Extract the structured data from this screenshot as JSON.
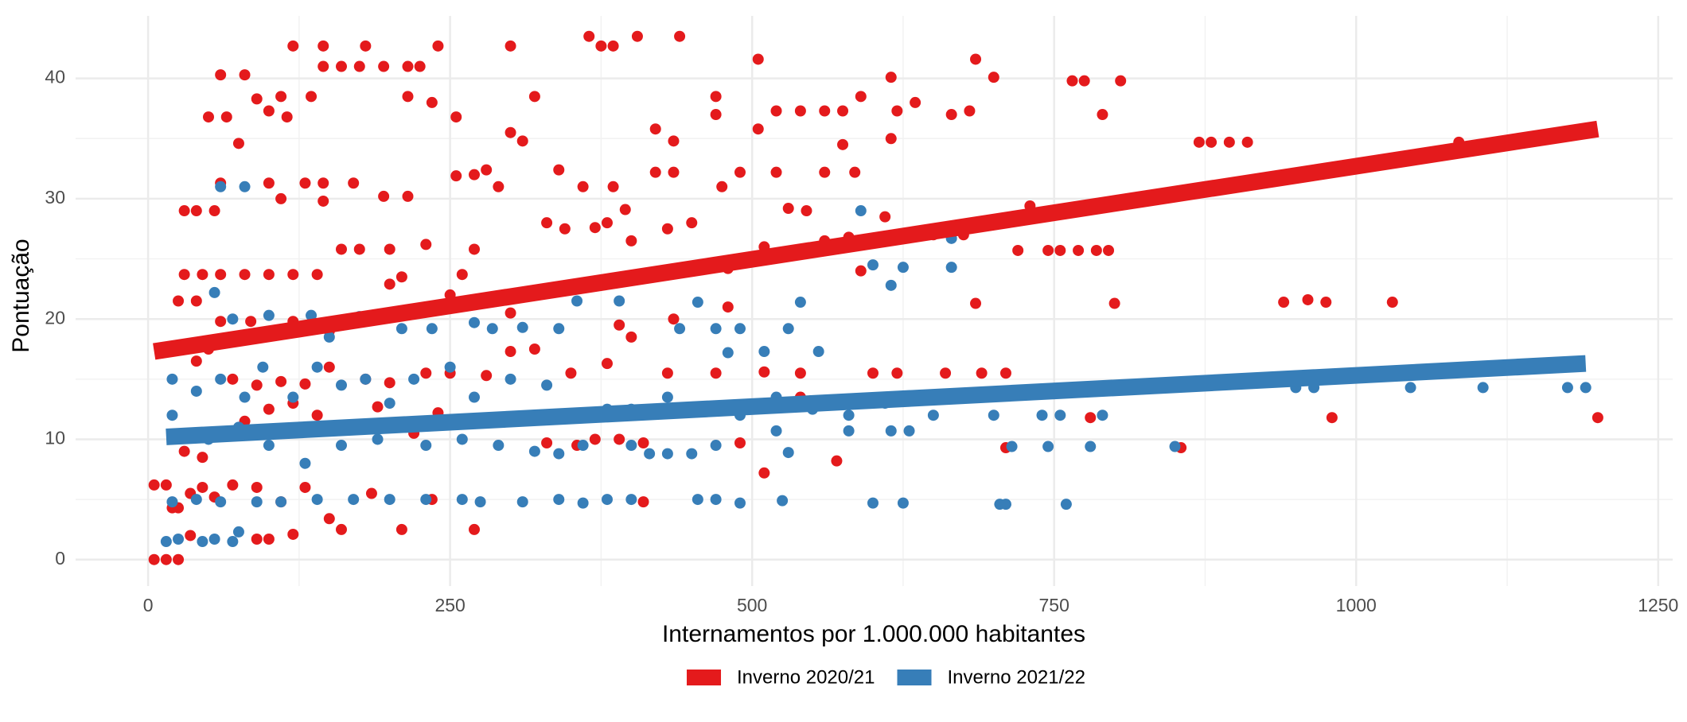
{
  "chart_data": {
    "type": "scatter",
    "xlabel": "Internamentos por 1.000.000 habitantes",
    "ylabel": "Pontuação",
    "xlim": [
      -60,
      1262
    ],
    "ylim": [
      -2.2,
      45.2
    ],
    "xticks": [
      0,
      250,
      500,
      750,
      1000,
      1250
    ],
    "yticks": [
      0,
      10,
      20,
      30,
      40
    ],
    "grid": true,
    "legend": "bottom",
    "series": [
      {
        "name": "Inverno 2020/21",
        "color": "#e41a1c",
        "x": [
          120,
          145,
          180,
          240,
          300,
          365,
          375,
          385,
          405,
          440,
          145,
          160,
          175,
          195,
          215,
          225,
          505,
          685,
          60,
          80,
          615,
          700,
          765,
          775,
          805,
          90,
          110,
          135,
          215,
          235,
          320,
          470,
          590,
          635,
          50,
          65,
          100,
          115,
          255,
          470,
          520,
          540,
          560,
          575,
          620,
          665,
          680,
          790,
          300,
          310,
          420,
          505,
          575,
          615,
          435,
          75,
          870,
          880,
          895,
          910,
          1085,
          60,
          100,
          130,
          145,
          170,
          255,
          270,
          280,
          340,
          360,
          385,
          420,
          435,
          475,
          490,
          520,
          560,
          585,
          30,
          40,
          55,
          110,
          145,
          195,
          215,
          290,
          730,
          545,
          530,
          395,
          60,
          80,
          100,
          120,
          140,
          160,
          175,
          200,
          230,
          260,
          270,
          330,
          345,
          370,
          380,
          400,
          430,
          450,
          480,
          510,
          540,
          560,
          580,
          610,
          650,
          675,
          720,
          745,
          755,
          770,
          785,
          795,
          30,
          45,
          25,
          40,
          60,
          85,
          120,
          150,
          175,
          200,
          210,
          250,
          270,
          300,
          390,
          400,
          435,
          480,
          685,
          800,
          940,
          960,
          975,
          1030,
          40,
          50,
          70,
          90,
          110,
          130,
          150,
          180,
          200,
          230,
          250,
          280,
          300,
          320,
          350,
          380,
          430,
          470,
          510,
          540,
          600,
          620,
          660,
          690,
          710,
          590,
          30,
          45,
          60,
          80,
          100,
          120,
          140,
          170,
          190,
          220,
          240,
          270,
          330,
          355,
          370,
          390,
          410,
          490,
          540,
          570,
          710,
          780,
          855,
          980,
          1200,
          510,
          5,
          15,
          25,
          35,
          45,
          55,
          70,
          90,
          110,
          130,
          160,
          185,
          210,
          235,
          270,
          410,
          5,
          15,
          25,
          20,
          35,
          90,
          100,
          120,
          150
        ],
        "values": [
          42.7,
          42.7,
          42.7,
          42.7,
          42.7,
          43.5,
          42.7,
          42.7,
          43.5,
          43.5,
          41,
          41,
          41,
          41,
          41,
          41,
          41.6,
          41.6,
          40.3,
          40.3,
          40.1,
          40.1,
          39.8,
          39.8,
          39.8,
          38.3,
          38.5,
          38.5,
          38.5,
          38,
          38.5,
          38.5,
          38.5,
          38,
          36.8,
          36.8,
          37.3,
          36.8,
          36.8,
          37,
          37.3,
          37.3,
          37.3,
          37.3,
          37.3,
          37,
          37.3,
          37,
          35.5,
          34.8,
          35.8,
          35.8,
          34.5,
          35,
          34.8,
          34.6,
          34.7,
          34.7,
          34.7,
          34.7,
          34.7,
          31.3,
          31.3,
          31.3,
          31.3,
          31.3,
          31.9,
          32,
          32.4,
          32.4,
          31,
          31,
          32.2,
          32.2,
          31,
          32.2,
          32.2,
          32.2,
          32.2,
          29,
          29,
          29,
          30,
          29.8,
          30.2,
          30.2,
          31,
          29.4,
          29,
          29.2,
          29.1,
          23.7,
          23.7,
          23.7,
          23.7,
          23.7,
          25.8,
          25.8,
          25.8,
          26.2,
          23.7,
          25.8,
          28,
          27.5,
          27.6,
          28,
          26.5,
          27.5,
          28,
          24.2,
          26,
          25.5,
          26.5,
          26.8,
          28.5,
          27,
          27,
          25.7,
          25.7,
          25.7,
          25.7,
          25.7,
          25.7,
          23.7,
          23.7,
          21.5,
          21.5,
          19.8,
          19.8,
          19.8,
          19,
          20,
          22.9,
          23.5,
          22,
          21.5,
          20.5,
          19.5,
          18.5,
          20,
          21,
          21.3,
          21.3,
          21.4,
          21.6,
          21.4,
          21.4,
          16.5,
          17.5,
          15,
          14.5,
          14.8,
          14.6,
          16,
          15,
          14.7,
          15.5,
          15.5,
          15.3,
          17.3,
          17.5,
          15.5,
          16.3,
          15.5,
          15.5,
          15.6,
          15.5,
          15.5,
          15.5,
          15.5,
          15.5,
          15.5,
          24,
          9,
          8.5,
          10.5,
          11.5,
          12.5,
          13,
          12,
          11,
          12.7,
          10.5,
          12.2,
          11.5,
          9.7,
          9.5,
          10,
          10,
          9.7,
          9.7,
          13.5,
          8.2,
          9.3,
          11.8,
          9.3,
          11.8,
          11.8,
          7.2,
          6.2,
          6.2,
          4.3,
          5.5,
          6,
          5.2,
          6.2,
          6,
          4.8,
          6,
          2.5,
          5.5,
          2.5,
          5,
          2.5,
          4.8,
          0,
          0,
          0,
          4.3,
          2,
          1.7,
          1.7,
          2.1,
          3.4
        ],
        "trend": {
          "x": [
            5,
            1200
          ],
          "values": [
            17.3,
            35.8
          ]
        }
      },
      {
        "name": "Inverno 2021/22",
        "color": "#377eb8",
        "x": [
          60,
          80,
          55,
          70,
          100,
          135,
          150,
          175,
          210,
          235,
          270,
          285,
          310,
          340,
          355,
          390,
          440,
          455,
          470,
          490,
          530,
          540,
          555,
          580,
          590,
          600,
          615,
          625,
          665,
          665,
          480,
          510,
          20,
          40,
          60,
          80,
          95,
          120,
          140,
          160,
          180,
          200,
          220,
          250,
          270,
          300,
          330,
          360,
          380,
          400,
          430,
          460,
          490,
          520,
          550,
          580,
          610,
          650,
          700,
          740,
          755,
          790,
          870,
          950,
          965,
          1045,
          1105,
          1175,
          1190,
          20,
          50,
          75,
          100,
          130,
          160,
          190,
          230,
          260,
          290,
          320,
          340,
          360,
          400,
          415,
          430,
          450,
          470,
          520,
          530,
          580,
          615,
          630,
          715,
          745,
          780,
          850,
          20,
          40,
          60,
          90,
          110,
          140,
          170,
          200,
          230,
          260,
          275,
          310,
          340,
          360,
          380,
          400,
          455,
          470,
          490,
          525,
          600,
          625,
          705,
          710,
          760,
          15,
          25,
          45,
          55,
          70,
          75
        ],
        "values": [
          31,
          31,
          22.2,
          20,
          20.3,
          20.3,
          18.5,
          20.2,
          19.2,
          19.2,
          19.7,
          19.2,
          19.3,
          19.2,
          21.5,
          21.5,
          19.2,
          21.4,
          19.2,
          19.2,
          19.2,
          21.4,
          17.3,
          26,
          29,
          24.5,
          22.8,
          24.3,
          24.3,
          26.7,
          17.2,
          17.3,
          15,
          14,
          15,
          13.5,
          16,
          13.5,
          16,
          14.5,
          15,
          13,
          15,
          16,
          13.5,
          15,
          14.5,
          12,
          12.5,
          12.5,
          13.5,
          12.5,
          12,
          13.5,
          12.5,
          12,
          13,
          12,
          12,
          12,
          12,
          12,
          14.5,
          14.3,
          14.3,
          14.3,
          14.3,
          14.3,
          14.3,
          12,
          10,
          11,
          9.5,
          8,
          9.5,
          10,
          9.5,
          10,
          9.5,
          9,
          8.8,
          9.5,
          9.5,
          8.8,
          8.8,
          8.8,
          9.5,
          10.7,
          8.9,
          10.7,
          10.7,
          10.7,
          9.4,
          9.4,
          9.4,
          9.4,
          4.8,
          5,
          4.8,
          4.8,
          4.8,
          5,
          5,
          5,
          5,
          5,
          4.8,
          4.8,
          5,
          4.7,
          5,
          5,
          5,
          5,
          4.7,
          4.9,
          4.7,
          4.7,
          4.6,
          4.6,
          4.6,
          1.5,
          1.7,
          1.5,
          1.7,
          1.5,
          2.3
        ],
        "trend": {
          "x": [
            15,
            1190
          ],
          "values": [
            10.2,
            16.3
          ]
        }
      }
    ]
  }
}
